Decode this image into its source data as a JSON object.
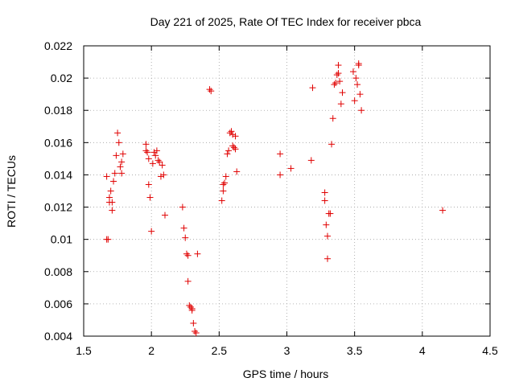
{
  "chart_data": {
    "type": "scatter",
    "title": "Day 221 of 2025, Rate Of TEC Index for receiver pbca",
    "xlabel": "GPS time / hours",
    "ylabel": "ROTI / TECUs",
    "xlim": [
      1.5,
      4.5
    ],
    "ylim": [
      0.004,
      0.022
    ],
    "grid": true,
    "marker": "+",
    "color": "#e00000",
    "x_ticks": [
      "1.5",
      "2",
      "2.5",
      "3",
      "3.5",
      "4",
      "4.5"
    ],
    "y_ticks": [
      "0.004",
      "0.006",
      "0.008",
      "0.01",
      "0.012",
      "0.014",
      "0.016",
      "0.018",
      "0.02",
      "0.022"
    ],
    "points": [
      [
        1.67,
        0.0139
      ],
      [
        1.67,
        0.01
      ],
      [
        1.68,
        0.01
      ],
      [
        1.69,
        0.0126
      ],
      [
        1.69,
        0.0123
      ],
      [
        1.7,
        0.013
      ],
      [
        1.71,
        0.0123
      ],
      [
        1.71,
        0.0118
      ],
      [
        1.72,
        0.0136
      ],
      [
        1.73,
        0.0141
      ],
      [
        1.74,
        0.0152
      ],
      [
        1.75,
        0.0166
      ],
      [
        1.76,
        0.016
      ],
      [
        1.77,
        0.0145
      ],
      [
        1.78,
        0.0141
      ],
      [
        1.78,
        0.0148
      ],
      [
        1.79,
        0.0153
      ],
      [
        1.96,
        0.0159
      ],
      [
        1.96,
        0.0155
      ],
      [
        1.97,
        0.0154
      ],
      [
        1.98,
        0.015
      ],
      [
        1.98,
        0.0134
      ],
      [
        1.99,
        0.0126
      ],
      [
        2.0,
        0.0105
      ],
      [
        2.01,
        0.0147
      ],
      [
        2.02,
        0.0154
      ],
      [
        2.03,
        0.0152
      ],
      [
        2.04,
        0.0155
      ],
      [
        2.05,
        0.0149
      ],
      [
        2.06,
        0.0148
      ],
      [
        2.07,
        0.0139
      ],
      [
        2.08,
        0.0146
      ],
      [
        2.09,
        0.014
      ],
      [
        2.1,
        0.0115
      ],
      [
        2.23,
        0.012
      ],
      [
        2.24,
        0.0107
      ],
      [
        2.25,
        0.0101
      ],
      [
        2.26,
        0.0091
      ],
      [
        2.27,
        0.009
      ],
      [
        2.27,
        0.0074
      ],
      [
        2.28,
        0.0059
      ],
      [
        2.29,
        0.0058
      ],
      [
        2.3,
        0.0057
      ],
      [
        2.3,
        0.0056
      ],
      [
        2.31,
        0.0048
      ],
      [
        2.32,
        0.0043
      ],
      [
        2.33,
        0.0042
      ],
      [
        2.34,
        0.0091
      ],
      [
        2.43,
        0.0193
      ],
      [
        2.44,
        0.0192
      ],
      [
        2.52,
        0.0124
      ],
      [
        2.53,
        0.013
      ],
      [
        2.53,
        0.0134
      ],
      [
        2.54,
        0.0135
      ],
      [
        2.55,
        0.0139
      ],
      [
        2.56,
        0.0153
      ],
      [
        2.57,
        0.0155
      ],
      [
        2.58,
        0.0166
      ],
      [
        2.59,
        0.0167
      ],
      [
        2.6,
        0.0165
      ],
      [
        2.6,
        0.0158
      ],
      [
        2.61,
        0.0157
      ],
      [
        2.62,
        0.0156
      ],
      [
        2.62,
        0.0164
      ],
      [
        2.63,
        0.0142
      ],
      [
        2.95,
        0.0153
      ],
      [
        2.95,
        0.014
      ],
      [
        3.03,
        0.0144
      ],
      [
        3.18,
        0.0149
      ],
      [
        3.19,
        0.0194
      ],
      [
        3.28,
        0.0129
      ],
      [
        3.28,
        0.0124
      ],
      [
        3.29,
        0.0109
      ],
      [
        3.3,
        0.0102
      ],
      [
        3.3,
        0.0088
      ],
      [
        3.31,
        0.0116
      ],
      [
        3.32,
        0.0116
      ],
      [
        3.33,
        0.0159
      ],
      [
        3.34,
        0.0175
      ],
      [
        3.35,
        0.0196
      ],
      [
        3.36,
        0.0197
      ],
      [
        3.37,
        0.0202
      ],
      [
        3.38,
        0.0208
      ],
      [
        3.38,
        0.0203
      ],
      [
        3.39,
        0.0198
      ],
      [
        3.4,
        0.0184
      ],
      [
        3.41,
        0.0191
      ],
      [
        3.49,
        0.0204
      ],
      [
        3.5,
        0.0186
      ],
      [
        3.51,
        0.02
      ],
      [
        3.52,
        0.0196
      ],
      [
        3.53,
        0.0208
      ],
      [
        3.53,
        0.0209
      ],
      [
        3.54,
        0.019
      ],
      [
        3.55,
        0.018
      ],
      [
        4.15,
        0.0118
      ]
    ]
  }
}
